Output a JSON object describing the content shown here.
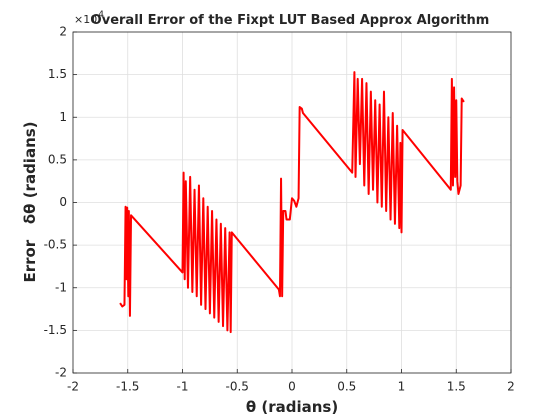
{
  "chart_data": {
    "type": "line",
    "title": "Overall Error of the Fixpt LUT Based Approx Algorithm",
    "x_label": "θ (radians)",
    "y_label": "Error   δθ (radians)",
    "y_multiplier": {
      "base": "×10",
      "exponent": "-4"
    },
    "xlim": [
      -2,
      2
    ],
    "ylim": [
      -2,
      2
    ],
    "xticks": [
      -2,
      -1.5,
      -1,
      -0.5,
      0,
      0.5,
      1,
      1.5,
      2
    ],
    "yticks": [
      -2,
      -1.5,
      -1,
      -0.5,
      0,
      0.5,
      1,
      1.5,
      2
    ],
    "grid": true,
    "series": [
      {
        "color": "#ff0000",
        "x": [
          -1.57,
          -1.55,
          -1.53,
          -1.52,
          -1.51,
          -1.505,
          -1.495,
          -1.49,
          -1.48,
          -1.47,
          -1.0,
          -0.99,
          -0.98,
          -0.97,
          -0.95,
          -0.93,
          -0.91,
          -0.89,
          -0.87,
          -0.85,
          -0.83,
          -0.81,
          -0.79,
          -0.77,
          -0.75,
          -0.73,
          -0.71,
          -0.69,
          -0.67,
          -0.65,
          -0.63,
          -0.61,
          -0.59,
          -0.57,
          -0.56,
          -0.55,
          -0.12,
          -0.11,
          -0.1,
          -0.09,
          -0.08,
          -0.06,
          -0.05,
          -0.02,
          0.0,
          0.02,
          0.04,
          0.06,
          0.07,
          0.09,
          0.1,
          0.55,
          0.57,
          0.58,
          0.6,
          0.62,
          0.64,
          0.66,
          0.68,
          0.7,
          0.72,
          0.74,
          0.76,
          0.78,
          0.8,
          0.82,
          0.84,
          0.86,
          0.88,
          0.9,
          0.92,
          0.94,
          0.96,
          0.98,
          0.99,
          1.0,
          1.01,
          1.45,
          1.46,
          1.47,
          1.48,
          1.49,
          1.5,
          1.51,
          1.52,
          1.54,
          1.55,
          1.57
        ],
        "values": [
          -1.18,
          -1.22,
          -1.2,
          -0.05,
          -0.9,
          -0.06,
          -1.1,
          -0.1,
          -1.33,
          -0.15,
          -0.82,
          0.35,
          -0.9,
          0.25,
          -1.0,
          0.3,
          -1.05,
          0.15,
          -1.1,
          0.2,
          -1.2,
          0.05,
          -1.25,
          -0.05,
          -1.3,
          -0.1,
          -1.35,
          -0.2,
          -1.4,
          -0.25,
          -1.45,
          -0.3,
          -1.5,
          -0.35,
          -1.52,
          -0.35,
          -1.02,
          -1.1,
          0.28,
          -1.1,
          -0.1,
          -0.1,
          -0.2,
          -0.2,
          0.05,
          0.02,
          -0.05,
          0.05,
          1.12,
          1.1,
          1.05,
          0.35,
          1.53,
          0.3,
          1.45,
          0.45,
          1.45,
          0.2,
          1.4,
          0.1,
          1.3,
          0.15,
          1.2,
          0.0,
          1.15,
          -0.05,
          1.3,
          -0.1,
          1.0,
          -0.2,
          1.05,
          -0.25,
          0.9,
          -0.3,
          0.7,
          -0.35,
          0.85,
          0.15,
          1.45,
          0.2,
          1.35,
          0.3,
          1.2,
          0.25,
          0.1,
          0.2,
          1.22,
          1.18
        ]
      }
    ]
  }
}
